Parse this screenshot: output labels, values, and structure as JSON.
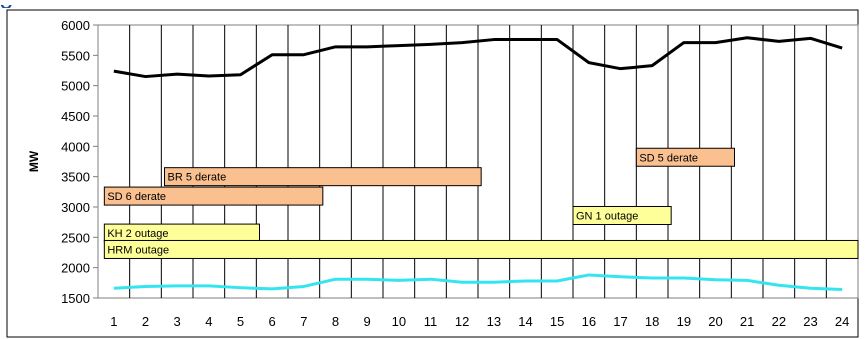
{
  "chart_data": {
    "type": "line",
    "xlabel": "",
    "ylabel": "MW",
    "x": [
      1,
      2,
      3,
      4,
      5,
      6,
      7,
      8,
      9,
      10,
      11,
      12,
      13,
      14,
      15,
      16,
      17,
      18,
      19,
      20,
      21,
      22,
      23,
      24
    ],
    "ylim": [
      1500,
      6000
    ],
    "yticks": [
      1500,
      2000,
      2500,
      3000,
      3500,
      4000,
      4500,
      5000,
      5500,
      6000
    ],
    "ytick_labels": [
      "1500",
      "2000",
      "2500",
      "3000",
      "3500",
      "4000",
      "4500",
      "5000",
      "5500",
      "6000"
    ],
    "xtick_labels": [
      "1",
      "2",
      "3",
      "4",
      "5",
      "6",
      "7",
      "8",
      "9",
      "10",
      "11",
      "12",
      "13",
      "14",
      "15",
      "16",
      "17",
      "18",
      "19",
      "20",
      "21",
      "22",
      "23",
      "24"
    ],
    "grid": {
      "vertical": true,
      "horizontal": false
    },
    "series": [
      {
        "color": "#000000",
        "values": [
          5240,
          5150,
          5190,
          5160,
          5180,
          5510,
          5510,
          5640,
          5640,
          5660,
          5680,
          5710,
          5760,
          5760,
          5760,
          5380,
          5280,
          5330,
          5710,
          5710,
          5790,
          5730,
          5780,
          5620
        ]
      },
      {
        "color": "#33e5ef",
        "values": [
          1660,
          1690,
          1700,
          1700,
          1670,
          1650,
          1690,
          1810,
          1810,
          1790,
          1810,
          1760,
          1760,
          1780,
          1780,
          1880,
          1850,
          1830,
          1830,
          1800,
          1790,
          1710,
          1660,
          1640
        ]
      }
    ],
    "events": [
      {
        "label": "BR 5 derate",
        "start": 2.6,
        "end": 12.6,
        "level": 3500,
        "color": "#fac090"
      },
      {
        "label": "SD 6 derate",
        "start": 0.7,
        "end": 7.6,
        "level": 3180,
        "color": "#fac090"
      },
      {
        "label": "SD 5 derate",
        "start": 17.5,
        "end": 20.6,
        "level": 3820,
        "color": "#fac090"
      },
      {
        "label": "GN 1 outage",
        "start": 15.5,
        "end": 18.6,
        "level": 2860,
        "color": "#ffff99"
      },
      {
        "label": "KH 2 outage",
        "start": 0.7,
        "end": 5.6,
        "level": 2570,
        "color": "#ffff99"
      },
      {
        "label": "HRM outage",
        "start": 0.7,
        "end": 24.7,
        "level": 2300,
        "color": "#ffff99"
      }
    ]
  }
}
